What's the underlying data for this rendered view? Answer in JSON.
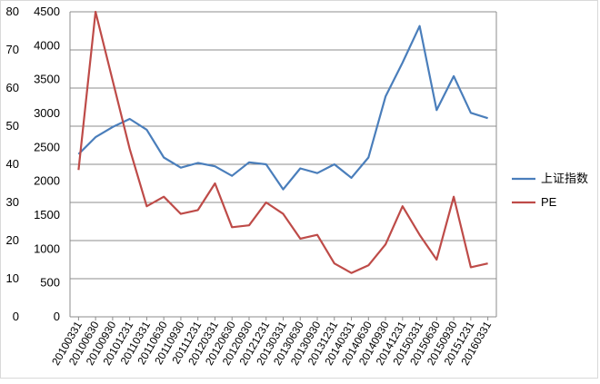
{
  "chart_data": {
    "type": "line",
    "title": "",
    "xlabel": "",
    "ylabel": "",
    "categories": [
      "20100331",
      "20100630",
      "20100930",
      "20101231",
      "20110331",
      "20110630",
      "20110930",
      "20111231",
      "20120331",
      "20120630",
      "20120930",
      "20121231",
      "20130331",
      "20130630",
      "20130930",
      "20131231",
      "20140331",
      "20140630",
      "20140930",
      "20141231",
      "20150331",
      "20150630",
      "20150930",
      "20151231",
      "20160331"
    ],
    "left_axis": {
      "min": 0,
      "max": 80,
      "ticks": [
        "0",
        "10",
        "20",
        "30",
        "40",
        "50",
        "60",
        "70",
        "80"
      ]
    },
    "right_axis": {
      "min": 0,
      "max": 4500,
      "ticks": [
        "0",
        "500",
        "1000",
        "1500",
        "2000",
        "2500",
        "3000",
        "3500",
        "4000",
        "4500"
      ]
    },
    "grid": true,
    "legend_position": "right",
    "series": [
      {
        "name": "上证指数",
        "axis": "right",
        "color": "#4a7ebb",
        "values": [
          2400,
          2650,
          2800,
          2920,
          2760,
          2350,
          2200,
          2270,
          2220,
          2080,
          2280,
          2250,
          1880,
          2190,
          2120,
          2250,
          2050,
          2350,
          3250,
          3750,
          4290,
          3050,
          3550,
          3010,
          2930
        ]
      },
      {
        "name": "PE",
        "axis": "left",
        "color": "#be4b48",
        "values": [
          38.5,
          80,
          62,
          44,
          29,
          31.5,
          27,
          28,
          35,
          23.5,
          24,
          30,
          27,
          20.5,
          21.5,
          14,
          11.5,
          13.5,
          19,
          29,
          21.5,
          15,
          31.5,
          13,
          14
        ]
      }
    ]
  }
}
